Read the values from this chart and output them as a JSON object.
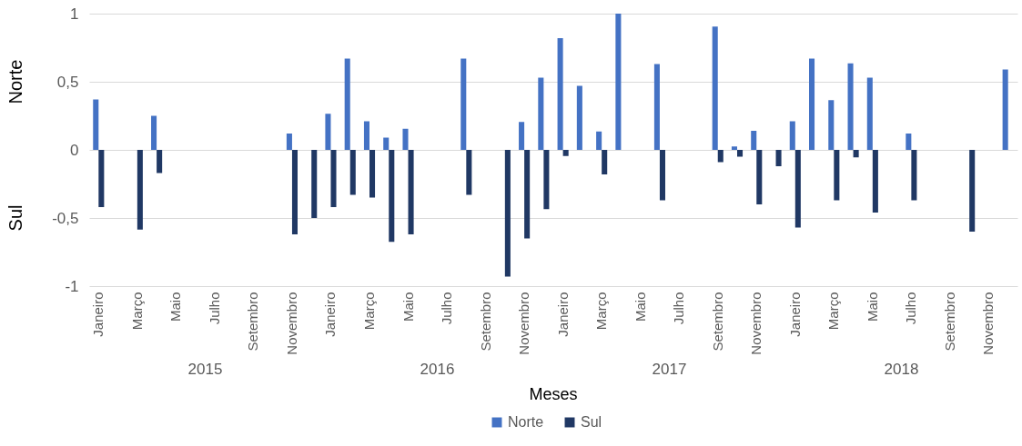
{
  "chart_data": {
    "type": "bar",
    "xlabel": "Meses",
    "ylabel": "Norte",
    "annotations": [
      "Sul",
      "2015",
      "2016",
      "2017",
      "2018"
    ],
    "categories": [
      "Janeiro",
      null,
      "Março",
      null,
      "Maio",
      null,
      "Julho",
      null,
      "Setembro",
      null,
      "Novembro",
      null,
      "Janeiro",
      null,
      "Março",
      null,
      "Maio",
      null,
      "Julho",
      null,
      "Setembro",
      null,
      "Novembro",
      null,
      "Janeiro",
      null,
      "Março",
      null,
      "Maio",
      null,
      "Julho",
      null,
      "Setembro",
      null,
      "Novembro",
      null,
      "Janeiro",
      null,
      "Março",
      null,
      "Maio",
      null,
      "Julho",
      null,
      "Setembro",
      null,
      "Novembro",
      null
    ],
    "series": [
      {
        "name": "Norte",
        "color": "#4472c4",
        "values": [
          0.37,
          null,
          null,
          0.25,
          null,
          null,
          null,
          null,
          null,
          null,
          0.12,
          null,
          0.265,
          0.67,
          0.21,
          0.09,
          0.155,
          null,
          null,
          0.67,
          null,
          null,
          0.205,
          0.53,
          0.82,
          0.47,
          0.135,
          1.0,
          null,
          0.63,
          null,
          null,
          0.905,
          0.025,
          0.14,
          null,
          0.21,
          0.67,
          0.365,
          0.635,
          0.53,
          null,
          0.12,
          null,
          null,
          null,
          null,
          0.59
        ]
      },
      {
        "name": "Sul",
        "color": "#203864",
        "values": [
          -0.42,
          null,
          -0.585,
          -0.17,
          null,
          null,
          null,
          null,
          null,
          null,
          -0.62,
          -0.5,
          -0.42,
          -0.33,
          -0.35,
          -0.675,
          -0.62,
          null,
          null,
          -0.33,
          null,
          -0.93,
          -0.65,
          -0.435,
          -0.045,
          null,
          -0.18,
          null,
          null,
          -0.37,
          null,
          null,
          -0.09,
          -0.05,
          -0.4,
          -0.12,
          -0.57,
          null,
          -0.37,
          -0.055,
          -0.46,
          null,
          -0.37,
          null,
          null,
          -0.6,
          null,
          null
        ]
      }
    ],
    "ylim": [
      -1,
      1
    ],
    "yticks": [
      -1,
      {
        "value": -0.5,
        "label": "-0,5"
      },
      0,
      {
        "value": 0.5,
        "label": "0,5"
      },
      1
    ],
    "grid": "y",
    "legend": "bottom"
  }
}
